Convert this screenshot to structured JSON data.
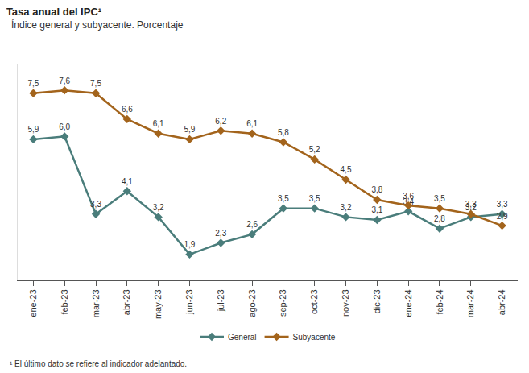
{
  "chart_data": {
    "type": "line",
    "title": "Tasa anual del IPC¹",
    "subtitle": "Índice general y subyacente. Porcentaje",
    "footnote": "¹ El último dato se refiere al indicador adelantado.",
    "categories": [
      "ene-23",
      "feb-23",
      "mar-23",
      "abr-23",
      "may-23",
      "jun-23",
      "jul-23",
      "ago-23",
      "sep-23",
      "oct-23",
      "nov-23",
      "dic-23",
      "ene-24",
      "feb-24",
      "mar-24",
      "abr-24"
    ],
    "series": [
      {
        "name": "General",
        "color": "#4a7d7b",
        "marker": "diamond",
        "values": [
          5.9,
          6.0,
          3.3,
          4.1,
          3.2,
          1.9,
          2.3,
          2.6,
          3.5,
          3.5,
          3.2,
          3.1,
          3.4,
          2.8,
          3.2,
          3.3
        ],
        "value_labels": [
          "5,9",
          "6,0",
          "3,3",
          "4,1",
          "3,2",
          "1,9",
          "2,3",
          "2,6",
          "3,5",
          "3,5",
          "3,2",
          "3,1",
          "3,4",
          "2,8",
          "3,2",
          "3,3"
        ]
      },
      {
        "name": "Subyacente",
        "color": "#a3641c",
        "marker": "diamond",
        "values": [
          7.5,
          7.6,
          7.5,
          6.6,
          6.1,
          5.9,
          6.2,
          6.1,
          5.8,
          5.2,
          4.5,
          3.8,
          3.6,
          3.5,
          3.3,
          2.9
        ],
        "value_labels": [
          "7,5",
          "7,6",
          "7,5",
          "6,6",
          "6,1",
          "5,9",
          "6,2",
          "6,1",
          "5,8",
          "5,2",
          "4,5",
          "3,8",
          "3,6",
          "3,5",
          "3,3",
          "2,9"
        ]
      }
    ],
    "ylim": [
      1,
      8.5
    ],
    "tick_labels": "x",
    "data_labels": true,
    "legend": "bottom",
    "grid": false
  }
}
